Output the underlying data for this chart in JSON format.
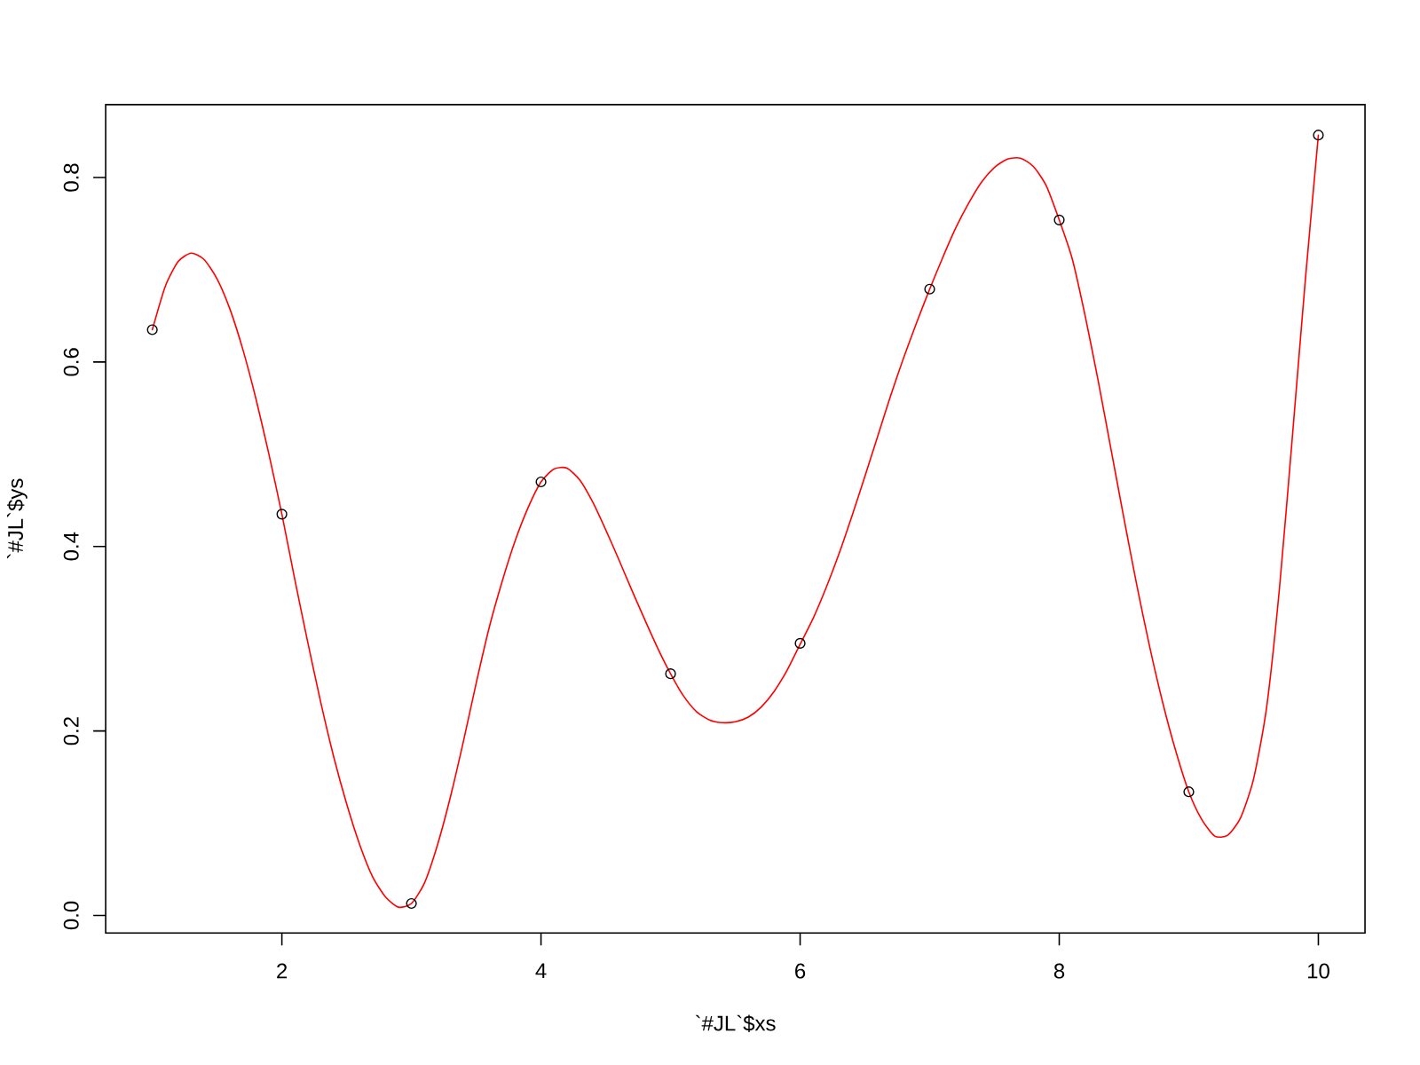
{
  "chart_data": {
    "type": "scatter",
    "xlabel": "`#JL`$xs",
    "ylabel": "`#JL`$ys",
    "xlim": [
      0.64,
      10.36
    ],
    "ylim": [
      -0.019,
      0.879
    ],
    "xticks": [
      2,
      4,
      6,
      8,
      10
    ],
    "yticks": [
      {
        "value": 0,
        "label": "0.0"
      },
      0.2,
      0.4,
      0.6,
      0.8
    ],
    "grid": false,
    "series": [
      {
        "type": "line",
        "color": "#ff0000",
        "marker": "none",
        "line_style": "solid",
        "x": [
          1.0,
          1.1,
          1.2,
          1.3,
          1.4,
          1.5,
          1.6,
          1.7,
          1.8,
          1.9,
          2.0,
          2.1,
          2.2,
          2.3,
          2.4,
          2.5,
          2.6,
          2.7,
          2.8,
          2.9,
          3.0,
          3.1,
          3.2,
          3.3,
          3.4,
          3.5,
          3.6,
          3.7,
          3.8,
          3.9,
          4.0,
          4.1,
          4.2,
          4.3,
          4.4,
          4.5,
          4.6,
          4.7,
          4.8,
          4.9,
          5.0,
          5.1,
          5.2,
          5.3,
          5.4,
          5.5,
          5.6,
          5.7,
          5.8,
          5.9,
          6.0,
          6.1,
          6.2,
          6.3,
          6.4,
          6.5,
          6.6,
          6.7,
          6.8,
          6.9,
          7.0,
          7.1,
          7.2,
          7.3,
          7.4,
          7.5,
          7.6,
          7.7,
          7.8,
          7.9,
          8.0,
          8.1,
          8.2,
          8.3,
          8.4,
          8.5,
          8.6,
          8.7,
          8.8,
          8.9,
          9.0,
          9.1,
          9.2,
          9.3,
          9.4,
          9.5,
          9.6,
          9.7,
          9.8,
          9.9,
          10.0
        ],
        "values": [
          0.635,
          0.682,
          0.709,
          0.718,
          0.711,
          0.69,
          0.657,
          0.613,
          0.56,
          0.5,
          0.435,
          0.364,
          0.296,
          0.231,
          0.172,
          0.121,
          0.077,
          0.042,
          0.02,
          0.009,
          0.013,
          0.035,
          0.076,
          0.128,
          0.188,
          0.252,
          0.312,
          0.362,
          0.406,
          0.442,
          0.47,
          0.484,
          0.485,
          0.472,
          0.448,
          0.418,
          0.386,
          0.353,
          0.321,
          0.29,
          0.262,
          0.238,
          0.221,
          0.212,
          0.209,
          0.21,
          0.215,
          0.226,
          0.243,
          0.266,
          0.294,
          0.322,
          0.355,
          0.392,
          0.433,
          0.476,
          0.52,
          0.564,
          0.605,
          0.643,
          0.679,
          0.713,
          0.745,
          0.772,
          0.795,
          0.811,
          0.82,
          0.821,
          0.812,
          0.791,
          0.754,
          0.712,
          0.65,
          0.58,
          0.505,
          0.43,
          0.357,
          0.29,
          0.23,
          0.178,
          0.134,
          0.104,
          0.086,
          0.087,
          0.106,
          0.148,
          0.225,
          0.355,
          0.52,
          0.69,
          0.846
        ]
      },
      {
        "type": "scatter",
        "color": "#000000",
        "marker": "circle",
        "x": [
          1,
          2,
          3,
          4,
          5,
          6,
          7,
          8,
          9,
          10
        ],
        "values": [
          0.635,
          0.435,
          0.013,
          0.47,
          0.262,
          0.295,
          0.679,
          0.754,
          0.134,
          0.846
        ]
      }
    ]
  }
}
